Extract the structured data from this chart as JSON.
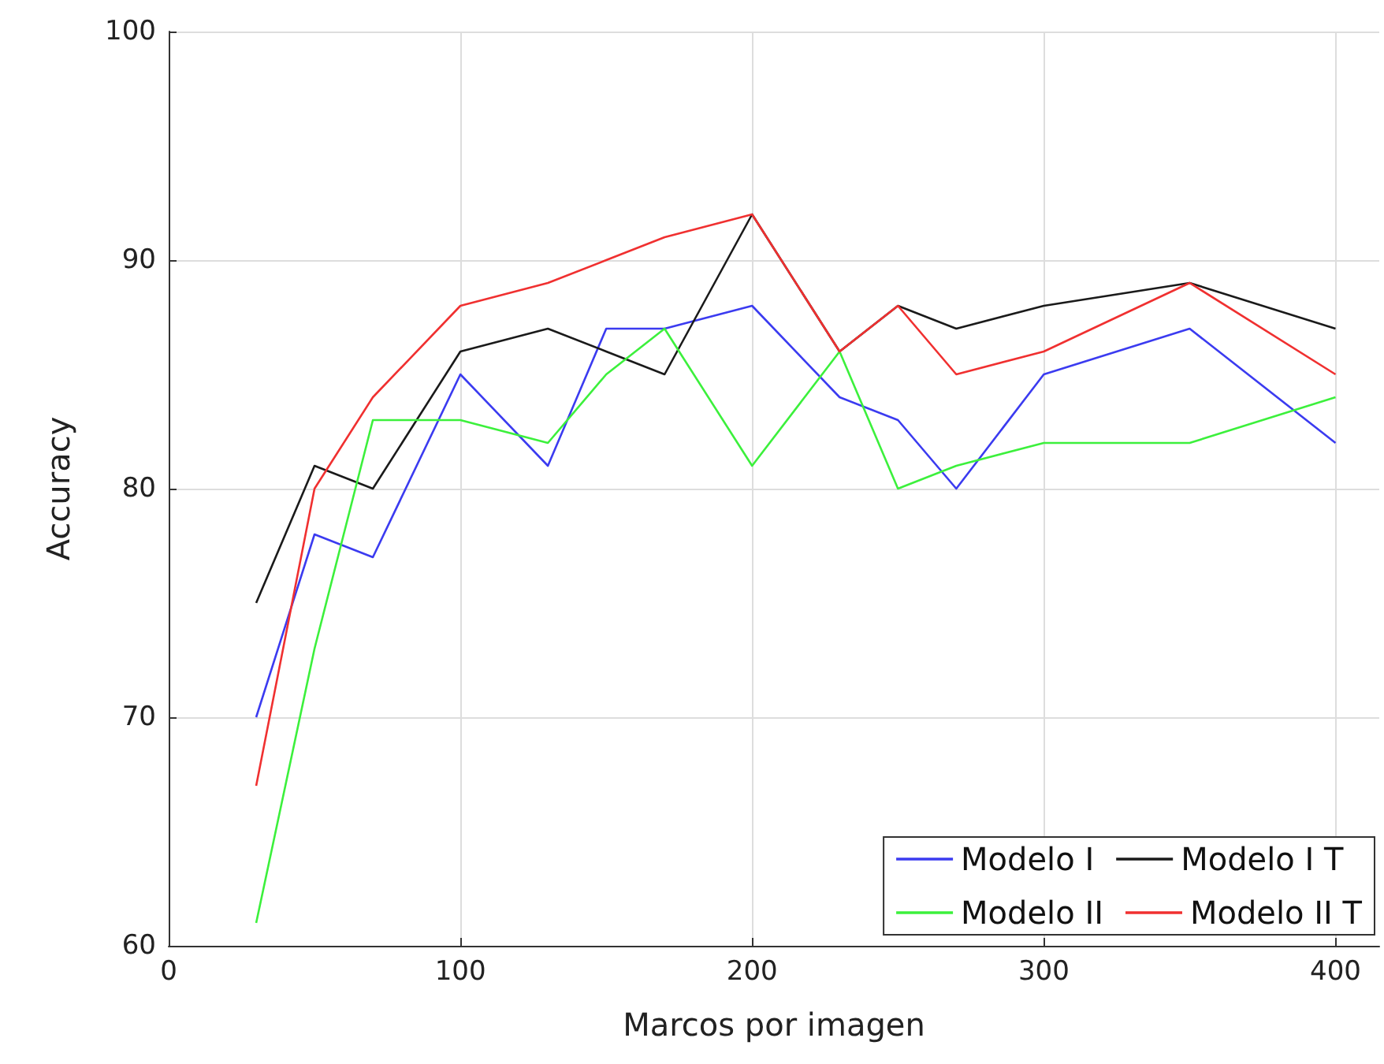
{
  "chart_data": {
    "type": "line",
    "xlabel": "Marcos por imagen",
    "ylabel": "Accuracy",
    "x": [
      30,
      50,
      70,
      100,
      130,
      150,
      170,
      200,
      230,
      250,
      270,
      300,
      350,
      400
    ],
    "xlim": [
      0,
      415
    ],
    "xticks": [
      0,
      100,
      200,
      300,
      400
    ],
    "ylim": [
      60,
      100
    ],
    "yticks": [
      60,
      70,
      80,
      90,
      100
    ],
    "grid": true,
    "legend": "bottom right",
    "marker": "none",
    "line_style": "solid",
    "series": [
      {
        "name": "Modelo I",
        "color": "#3b3bf0",
        "values": [
          70,
          78,
          77,
          85,
          81,
          87,
          87,
          88,
          84,
          83,
          80,
          85,
          87,
          82
        ]
      },
      {
        "name": "Modelo I T",
        "color": "#1a1a1a",
        "values": [
          75,
          81,
          80,
          86,
          87,
          86,
          85,
          92,
          86,
          88,
          87,
          88,
          89,
          87
        ]
      },
      {
        "name": "Modelo II",
        "color": "#3cf03c",
        "values": [
          61,
          73,
          83,
          83,
          82,
          85,
          87,
          81,
          86,
          80,
          81,
          82,
          82,
          84
        ]
      },
      {
        "name": "Modelo II T",
        "color": "#f03030",
        "values": [
          67,
          80,
          84,
          88,
          89,
          90,
          91,
          92,
          86,
          88,
          85,
          86,
          89,
          85
        ]
      }
    ]
  }
}
